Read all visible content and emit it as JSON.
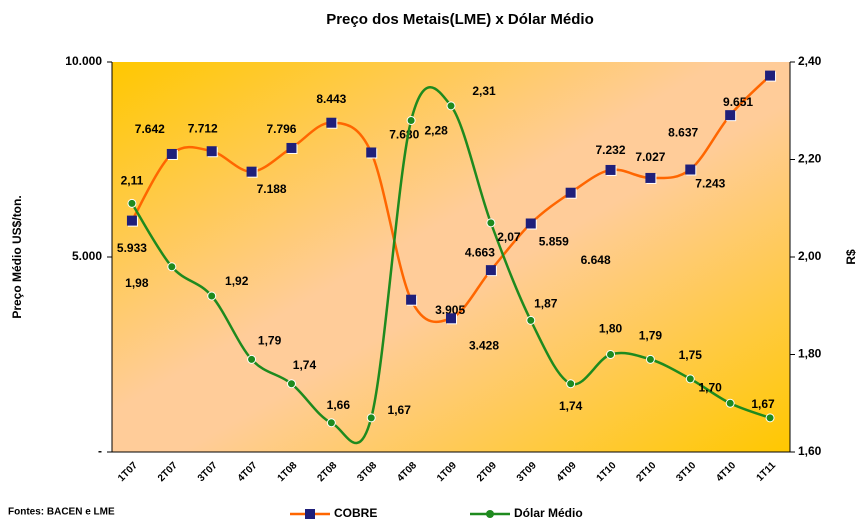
{
  "chart_data": {
    "type": "line",
    "title": "Preço dos Metais(LME) x Dólar Médio",
    "y_label": "Preço Médio US$/ton.",
    "y2_label": "R$",
    "source": "Fontes: BACEN e LME",
    "categories": [
      "1T07",
      "2T07",
      "3T07",
      "4T07",
      "1T08",
      "2T08",
      "3T08",
      "4T08",
      "1T09",
      "2T09",
      "3T09",
      "4T09",
      "1T10",
      "2T10",
      "3T10",
      "4T10",
      "1T11"
    ],
    "ylim": [
      0,
      10000
    ],
    "yticks": [
      {
        "value": 0,
        "label": "-"
      },
      {
        "value": 5000,
        "label": "5.000"
      },
      {
        "value": 10000,
        "label": "10.000"
      }
    ],
    "y2lim": [
      1.6,
      2.4
    ],
    "y2ticks": [
      {
        "value": 1.6,
        "label": "1,60"
      },
      {
        "value": 1.8,
        "label": "1,80"
      },
      {
        "value": 2.0,
        "label": "2,00"
      },
      {
        "value": 2.2,
        "label": "2,20"
      },
      {
        "value": 2.4,
        "label": "2,40"
      }
    ],
    "series": [
      {
        "name": "COBRE",
        "color": "#FF6600",
        "marker_color": "#1F1F7A",
        "values": [
          5933,
          7642,
          7712,
          7188,
          7796,
          8443,
          7680,
          3905,
          3428,
          4663,
          5859,
          6648,
          7232,
          7027,
          7243,
          8637,
          9651
        ],
        "value_labels": [
          "5.933",
          "7.642",
          "7.712",
          "7.188",
          "7.796",
          "8.443",
          "7.680",
          "3.905",
          "3.428",
          "4.663",
          "5.859",
          "6.648",
          "7.232",
          "7.027",
          "7.243",
          "8.637",
          "9.651"
        ]
      },
      {
        "name": "Dólar Médio",
        "color": "#1E8A1E",
        "marker_color": "#1E8A1E",
        "axis": "y2",
        "values": [
          2.11,
          1.98,
          1.92,
          1.79,
          1.74,
          1.66,
          1.67,
          2.28,
          2.31,
          2.07,
          1.87,
          1.74,
          1.8,
          1.79,
          1.75,
          1.7,
          1.67
        ],
        "value_labels": [
          "2,11",
          "1,98",
          "1,92",
          "1,79",
          "1,74",
          "1,66",
          "1,67",
          "2,28",
          "2,31",
          "2,07",
          "1,87",
          "1,74",
          "1,80",
          "1,79",
          "1,75",
          "1,70",
          "1,67"
        ]
      }
    ]
  }
}
